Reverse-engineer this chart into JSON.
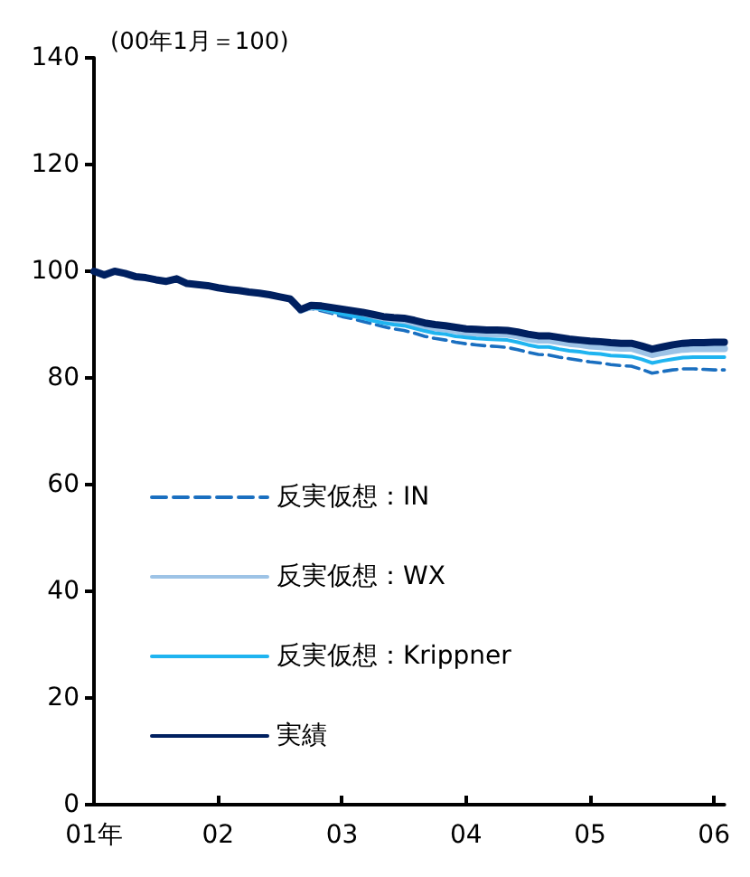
{
  "chart_data": {
    "type": "line",
    "ylabel": "(00年1月＝100)",
    "categories": [
      "01年",
      null,
      null,
      null,
      null,
      null,
      null,
      null,
      null,
      null,
      null,
      null,
      "02",
      null,
      null,
      null,
      null,
      null,
      null,
      null,
      null,
      null,
      null,
      null,
      "03",
      null,
      null,
      null,
      null,
      null,
      null,
      null,
      null,
      null,
      null,
      null,
      "04",
      null,
      null,
      null,
      null,
      null,
      null,
      null,
      null,
      null,
      null,
      null,
      "05",
      null,
      null,
      null,
      null,
      null,
      null,
      null,
      null,
      null,
      null,
      null,
      "06",
      null
    ],
    "ylim": [
      0,
      140
    ],
    "yticks": [
      0,
      20,
      40,
      60,
      80,
      100,
      120,
      140
    ],
    "grid": false,
    "legend": "left",
    "marker": "none",
    "series": [
      {
        "name": "反実仮想：IN",
        "color": "#1a6fc0",
        "line_style": "dashed",
        "values": [
          null,
          null,
          null,
          null,
          null,
          null,
          null,
          null,
          null,
          null,
          null,
          null,
          null,
          null,
          null,
          null,
          null,
          null,
          null,
          null,
          92.5,
          93.0,
          92.6,
          92.1,
          91.5,
          91.1,
          90.6,
          90.1,
          89.6,
          89.2,
          88.9,
          88.4,
          87.8,
          87.4,
          87.1,
          86.7,
          86.4,
          86.2,
          86.0,
          85.9,
          85.7,
          85.3,
          84.8,
          84.4,
          84.3,
          83.9,
          83.6,
          83.3,
          83.0,
          82.8,
          82.5,
          82.3,
          82.2,
          81.6,
          80.9,
          81.2,
          81.5,
          81.7,
          81.7,
          81.6,
          81.5,
          81.5
        ]
      },
      {
        "name": "反実仮想：WX",
        "color": "#9dc3e6",
        "line_style": "solid",
        "values": [
          null,
          null,
          null,
          null,
          null,
          null,
          null,
          null,
          null,
          null,
          null,
          null,
          null,
          null,
          null,
          null,
          null,
          null,
          null,
          null,
          92.7,
          93.4,
          93.2,
          92.8,
          92.4,
          92.1,
          91.8,
          91.4,
          91.0,
          90.8,
          90.6,
          90.2,
          89.7,
          89.4,
          89.2,
          88.9,
          88.5,
          88.4,
          88.3,
          88.3,
          88.2,
          87.9,
          87.4,
          87.1,
          87.1,
          86.8,
          86.5,
          86.3,
          86.0,
          85.9,
          85.7,
          85.6,
          85.6,
          85.0,
          84.4,
          84.8,
          85.1,
          85.4,
          85.5,
          85.5,
          85.5,
          85.5
        ]
      },
      {
        "name": "反実仮想：Krippner",
        "color": "#1fb4f0",
        "line_style": "solid",
        "values": [
          null,
          null,
          null,
          null,
          null,
          null,
          null,
          null,
          null,
          null,
          null,
          null,
          null,
          null,
          null,
          null,
          null,
          null,
          null,
          null,
          92.6,
          93.2,
          92.9,
          92.5,
          92.0,
          91.6,
          91.2,
          90.7,
          90.3,
          90.0,
          89.8,
          89.3,
          88.8,
          88.4,
          88.2,
          87.8,
          87.6,
          87.4,
          87.3,
          87.2,
          87.1,
          86.7,
          86.2,
          85.8,
          85.8,
          85.4,
          85.1,
          84.9,
          84.6,
          84.5,
          84.2,
          84.1,
          84.0,
          83.5,
          82.8,
          83.2,
          83.5,
          83.8,
          83.9,
          83.9,
          83.9,
          83.9
        ]
      },
      {
        "name": "実績",
        "color": "#002060",
        "line_style": "solid",
        "values": [
          100,
          99.3,
          100,
          99.6,
          99.0,
          98.8,
          98.4,
          98.1,
          98.6,
          97.7,
          97.5,
          97.3,
          96.9,
          96.6,
          96.4,
          96.1,
          95.9,
          95.6,
          95.2,
          94.8,
          92.8,
          93.6,
          93.5,
          93.2,
          92.9,
          92.6,
          92.3,
          91.9,
          91.5,
          91.3,
          91.2,
          90.8,
          90.3,
          90.0,
          89.8,
          89.5,
          89.2,
          89.1,
          89.0,
          89.0,
          88.9,
          88.6,
          88.2,
          87.9,
          87.9,
          87.6,
          87.3,
          87.1,
          86.9,
          86.8,
          86.6,
          86.5,
          86.5,
          86.0,
          85.4,
          85.8,
          86.2,
          86.5,
          86.6,
          86.6,
          86.7,
          86.7
        ]
      }
    ]
  }
}
